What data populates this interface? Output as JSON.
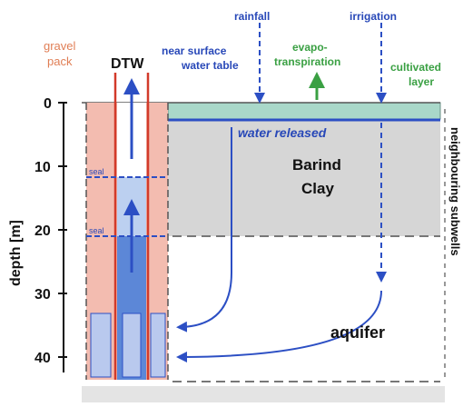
{
  "labels": {
    "rainfall": "rainfall",
    "irrigation": "irrigation",
    "gravel_pack_1": "gravel",
    "gravel_pack_2": "pack",
    "dtw": "DTW",
    "near_surface_1": "near surface",
    "near_surface_2": "water table",
    "evapo_1": "evapo-",
    "evapo_2": "transpiration",
    "cultivated_1": "cultivated",
    "cultivated_2": "layer",
    "water_released": "water released",
    "barind_1": "Barind",
    "barind_2": "Clay",
    "aquifer": "aquifer",
    "neighbouring": "neighbouring subwells",
    "depth_axis": "depth  [m]",
    "seal_1": "seal",
    "seal_2": "seal"
  },
  "axis": {
    "ticks": [
      "0",
      "10",
      "20",
      "30",
      "40"
    ]
  },
  "colors": {
    "clay": "#d6d6d6",
    "cultivated": "#a9d8c9",
    "casing": "#f3bcb0",
    "casing_edge": "#d23a2a",
    "water": "#3f72d0",
    "flow": "#2c4fc4",
    "evap": "#3aa043"
  }
}
